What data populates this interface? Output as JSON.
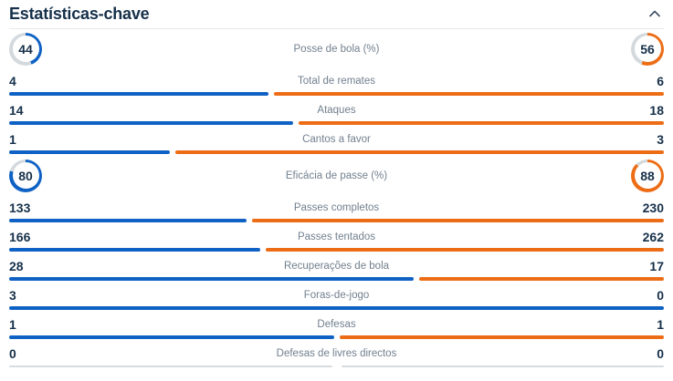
{
  "header": {
    "title": "Estatísticas-chave",
    "collapse_icon": "chevron-up-icon"
  },
  "colors": {
    "home": "#0f62c4",
    "away": "#ed6d16",
    "neutral": "#d7dbdf",
    "ring_track": "#d4d9dd",
    "value_text": "#16304a",
    "label_text": "#72808e",
    "divider": "#e7e9ec"
  },
  "stats": [
    {
      "label": "Posse de bola (%)",
      "home": 44,
      "away": 56,
      "display": "ring"
    },
    {
      "label": "Total de remates",
      "home": 4,
      "away": 6,
      "display": "bar"
    },
    {
      "label": "Ataques",
      "home": 14,
      "away": 18,
      "display": "bar"
    },
    {
      "label": "Cantos a favor",
      "home": 1,
      "away": 3,
      "display": "bar"
    },
    {
      "label": "Eficácia de passe (%)",
      "home": 80,
      "away": 88,
      "display": "ring"
    },
    {
      "label": "Passes completos",
      "home": 133,
      "away": 230,
      "display": "bar"
    },
    {
      "label": "Passes tentados",
      "home": 166,
      "away": 262,
      "display": "bar"
    },
    {
      "label": "Recuperações de bola",
      "home": 28,
      "away": 17,
      "display": "bar"
    },
    {
      "label": "Foras-de-jogo",
      "home": 3,
      "away": 0,
      "display": "bar"
    },
    {
      "label": "Defesas",
      "home": 1,
      "away": 1,
      "display": "bar"
    },
    {
      "label": "Defesas de livres directos",
      "home": 0,
      "away": 0,
      "display": "bar"
    }
  ]
}
